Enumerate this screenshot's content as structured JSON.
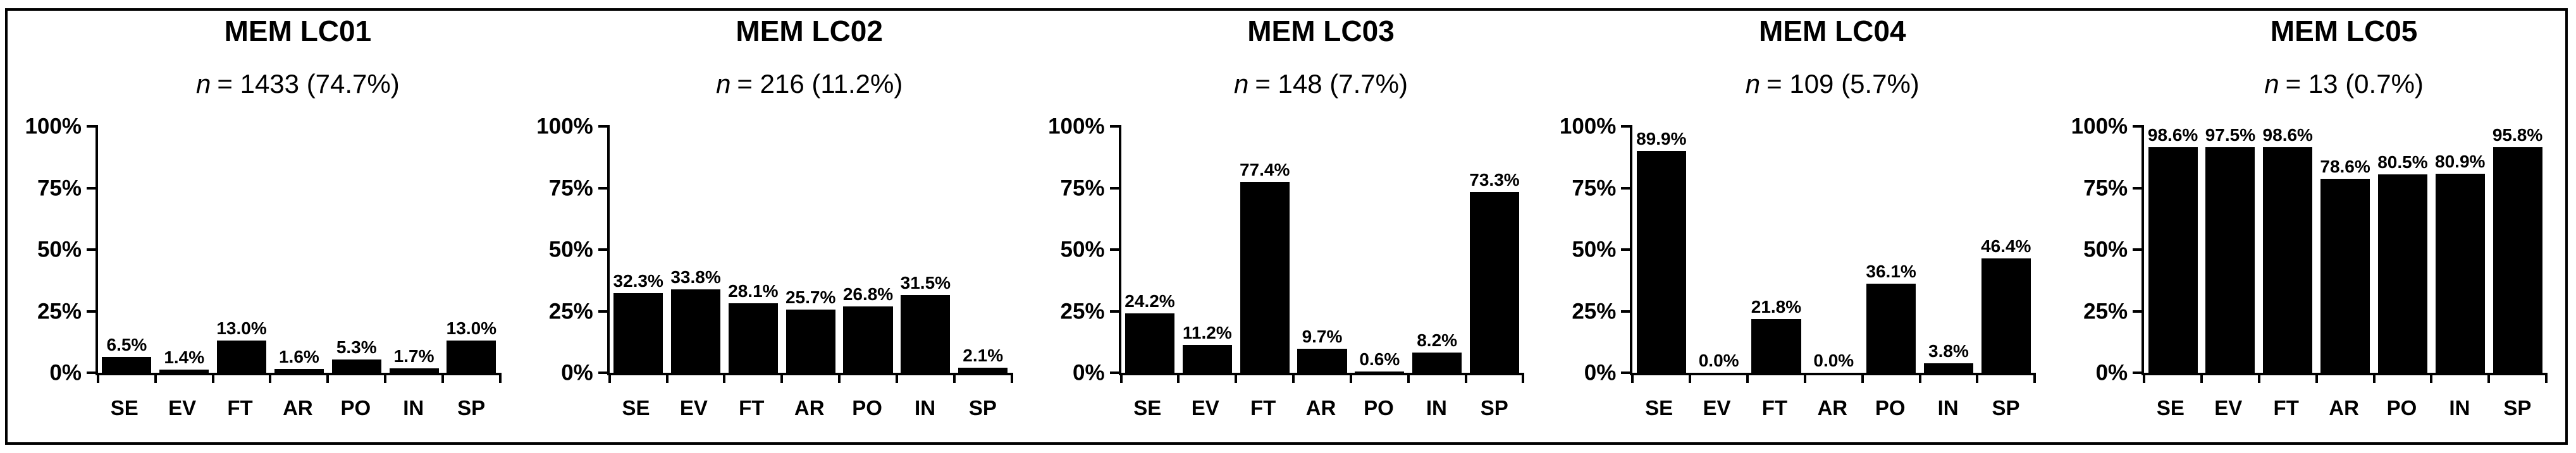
{
  "figure": {
    "background_color": "#ffffff",
    "foreground_color": "#000000",
    "bar_color": "#000000",
    "y_ticks": [
      "100%",
      "75%",
      "50%",
      "25%",
      "0%"
    ],
    "categories": [
      "SE",
      "EV",
      "FT",
      "AR",
      "PO",
      "IN",
      "SP"
    ]
  },
  "chart_data": [
    {
      "type": "bar",
      "title": "MEM LC01",
      "subtitle_prefix": "n",
      "subtitle_rest": "= 1433 (74.7%)",
      "n_value": 1433,
      "n_percent": "74.7%",
      "categories": [
        "SE",
        "EV",
        "FT",
        "AR",
        "PO",
        "IN",
        "SP"
      ],
      "values": [
        6.5,
        1.4,
        13.0,
        1.6,
        5.3,
        1.7,
        13.0
      ],
      "value_labels": [
        "6.5%",
        "1.4%",
        "13.0%",
        "1.6%",
        "5.3%",
        "1.7%",
        "13.0%"
      ],
      "ylim": [
        0,
        100
      ],
      "grid": false,
      "legend": false
    },
    {
      "type": "bar",
      "title": "MEM LC02",
      "subtitle_prefix": "n",
      "subtitle_rest": "= 216 (11.2%)",
      "n_value": 216,
      "n_percent": "11.2%",
      "categories": [
        "SE",
        "EV",
        "FT",
        "AR",
        "PO",
        "IN",
        "SP"
      ],
      "values": [
        32.3,
        33.8,
        28.1,
        25.7,
        26.8,
        31.5,
        2.1
      ],
      "value_labels": [
        "32.3%",
        "33.8%",
        "28.1%",
        "25.7%",
        "26.8%",
        "31.5%",
        "2.1%"
      ],
      "ylim": [
        0,
        100
      ],
      "grid": false,
      "legend": false
    },
    {
      "type": "bar",
      "title": "MEM LC03",
      "subtitle_prefix": "n",
      "subtitle_rest": "= 148 (7.7%)",
      "n_value": 148,
      "n_percent": "7.7%",
      "categories": [
        "SE",
        "EV",
        "FT",
        "AR",
        "PO",
        "IN",
        "SP"
      ],
      "values": [
        24.2,
        11.2,
        77.4,
        9.7,
        0.6,
        8.2,
        73.3
      ],
      "value_labels": [
        "24.2%",
        "11.2%",
        "77.4%",
        "9.7%",
        "0.6%",
        "8.2%",
        "73.3%"
      ],
      "ylim": [
        0,
        100
      ],
      "grid": false,
      "legend": false
    },
    {
      "type": "bar",
      "title": "MEM LC04",
      "subtitle_prefix": "n",
      "subtitle_rest": "= 109 (5.7%)",
      "n_value": 109,
      "n_percent": "5.7%",
      "categories": [
        "SE",
        "EV",
        "FT",
        "AR",
        "PO",
        "IN",
        "SP"
      ],
      "values": [
        89.9,
        0.0,
        21.8,
        0.0,
        36.1,
        3.8,
        46.4
      ],
      "value_labels": [
        "89.9%",
        "0.0%",
        "21.8%",
        "0.0%",
        "36.1%",
        "3.8%",
        "46.4%"
      ],
      "ylim": [
        0,
        100
      ],
      "grid": false,
      "legend": false
    },
    {
      "type": "bar",
      "title": "MEM LC05",
      "subtitle_prefix": "n",
      "subtitle_rest": "= 13 (0.7%)",
      "n_value": 13,
      "n_percent": "0.7%",
      "categories": [
        "SE",
        "EV",
        "FT",
        "AR",
        "PO",
        "IN",
        "SP"
      ],
      "values": [
        98.6,
        97.5,
        98.6,
        78.6,
        80.5,
        80.9,
        95.8
      ],
      "value_labels": [
        "98.6%",
        "97.5%",
        "98.6%",
        "78.6%",
        "80.5%",
        "80.9%",
        "95.8%"
      ],
      "ylim": [
        0,
        100
      ],
      "grid": false,
      "legend": false
    }
  ]
}
